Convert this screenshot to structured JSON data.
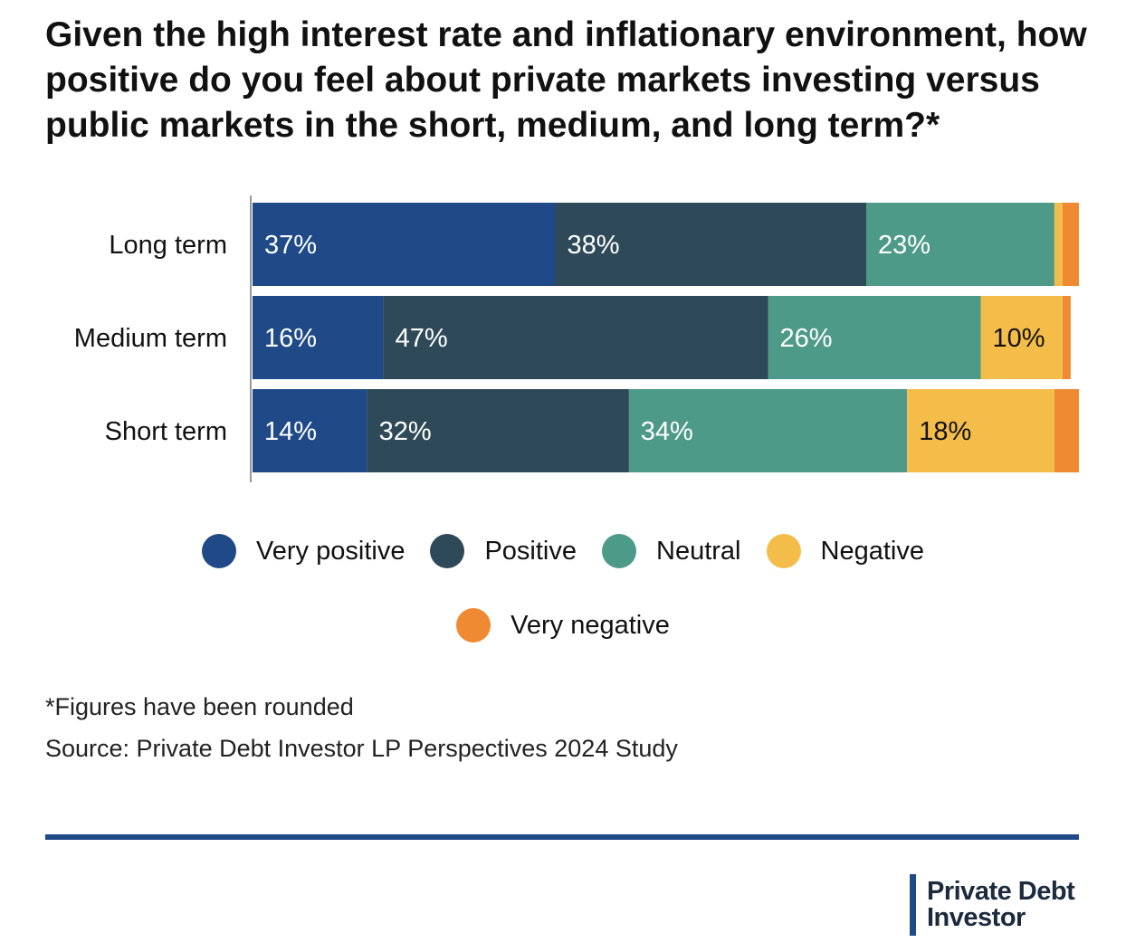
{
  "title": "Given the high interest rate and inflationary environment, how positive do you feel about private markets investing versus public markets in the short, medium, and long term?*",
  "chart_data": {
    "type": "bar",
    "orientation": "horizontal",
    "stacked": true,
    "categories": [
      "Long term",
      "Medium term",
      "Short term"
    ],
    "series": [
      {
        "name": "Very positive",
        "color": "#1f4a87",
        "values": [
          37,
          16,
          14
        ],
        "labels": [
          "37%",
          "16%",
          "14%"
        ]
      },
      {
        "name": "Positive",
        "color": "#2e4a58",
        "values": [
          38,
          47,
          32
        ],
        "labels": [
          "38%",
          "47%",
          "32%"
        ]
      },
      {
        "name": "Neutral",
        "color": "#4e9a88",
        "values": [
          23,
          26,
          34
        ],
        "labels": [
          "23%",
          "26%",
          "34%"
        ]
      },
      {
        "name": "Negative",
        "color": "#f4bd4a",
        "values": [
          1,
          10,
          18
        ],
        "labels": [
          "",
          "10%",
          "18%"
        ]
      },
      {
        "name": "Very negative",
        "color": "#ef8a32",
        "values": [
          2,
          1,
          3
        ],
        "labels": [
          "",
          "",
          ""
        ]
      }
    ],
    "xlim": [
      0,
      101
    ],
    "legend": "bottom",
    "grid": false
  },
  "legend": {
    "row1": [
      "Very positive",
      "Positive",
      "Neutral",
      "Negative"
    ],
    "row2": [
      "Very negative"
    ]
  },
  "notes": {
    "rounded": "*Figures have been rounded",
    "source": "Source: Private Debt Investor LP Perspectives 2024 Study"
  },
  "logo": {
    "line1": "Private Debt",
    "line2": "Investor"
  }
}
